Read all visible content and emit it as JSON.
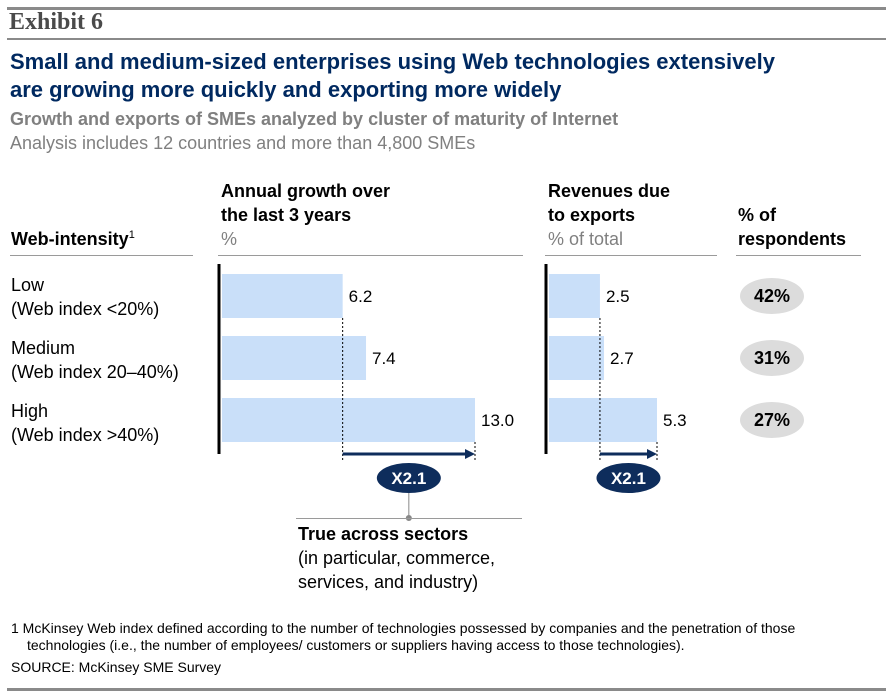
{
  "exhibit": "Exhibit 6",
  "title_line1": "Small and medium-sized enterprises using Web technologies extensively",
  "title_line2": "are growing more quickly and exporting more widely",
  "subtitle": "Growth and exports of SMEs analyzed by cluster of maturity of Internet",
  "subtitle2": "Analysis includes 12 countries and more than 4,800 SMEs",
  "row_header": "Web-intensity",
  "row_header_sup": "1",
  "rows": [
    {
      "line1": "Low",
      "line2": "(Web index <20%)"
    },
    {
      "line1": "Medium",
      "line2": "(Web index 20–40%)"
    },
    {
      "line1": "High",
      "line2": "(Web index >40%)"
    }
  ],
  "respondents_header_line1": "% of",
  "respondents_header_line2": "respondents",
  "respondents": [
    "42%",
    "31%",
    "27%"
  ],
  "colors": {
    "bar": "#c9dff9",
    "accent": "#0e2d5c",
    "title": "#002960",
    "pill": "#dcdcdc",
    "muted": "#808080"
  },
  "chart_data": [
    {
      "type": "bar",
      "orientation": "horizontal",
      "title_line1": "Annual growth over",
      "title_line2": "the last 3 years",
      "unit": "%",
      "categories": [
        "Low",
        "Medium",
        "High"
      ],
      "values": [
        6.2,
        7.4,
        13.0
      ],
      "value_labels": [
        "6.2",
        "7.4",
        "13.0"
      ],
      "xlim": [
        0,
        13.0
      ],
      "multiplier_label": "X2.1",
      "note_title": "True across sectors",
      "note_lines": [
        "(in particular, commerce,",
        "services, and industry)"
      ]
    },
    {
      "type": "bar",
      "orientation": "horizontal",
      "title_line1": "Revenues due",
      "title_line2": "to exports",
      "unit": "% of total",
      "categories": [
        "Low",
        "Medium",
        "High"
      ],
      "values": [
        2.5,
        2.7,
        5.3
      ],
      "value_labels": [
        "2.5",
        "2.7",
        "5.3"
      ],
      "xlim": [
        0,
        5.3
      ],
      "multiplier_label": "X2.1"
    }
  ],
  "footnote_line1": "1  McKinsey Web index defined according to the number of technologies possessed by  companies and the penetration of those",
  "footnote_line2": "technologies (i.e., the number of employees/ customers or suppliers having access to those technologies).",
  "source": "SOURCE: McKinsey SME Survey"
}
